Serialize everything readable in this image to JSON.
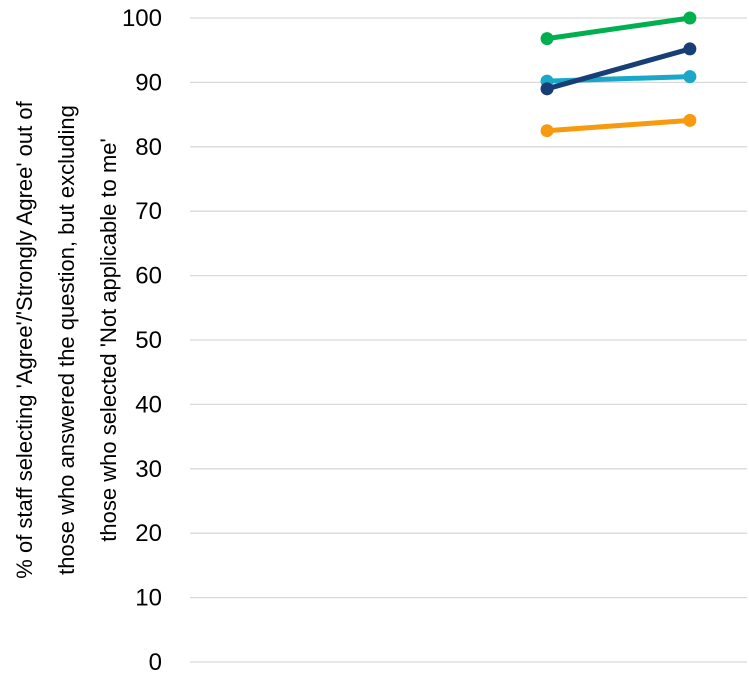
{
  "chart_data": {
    "type": "line",
    "title": "",
    "xlabel": "",
    "ylabel": [
      "% of staff selecting 'Agree'/'Strongly Agree' out of",
      "those who answered the question, but excluding",
      "those who selected 'Not applicable to me'"
    ],
    "ylim": [
      0,
      100
    ],
    "yticks": [
      0,
      10,
      20,
      30,
      40,
      50,
      60,
      70,
      80,
      90,
      100
    ],
    "grid": true,
    "legend": "none",
    "x": [
      1,
      2
    ],
    "xlim": [
      -1.5,
      2.4
    ],
    "series": [
      {
        "color": "#00B050",
        "values": [
          96.8,
          100.0
        ]
      },
      {
        "color": "#1AA8C8",
        "values": [
          90.2,
          90.9
        ]
      },
      {
        "color": "#173E75",
        "values": [
          89.0,
          95.2
        ]
      },
      {
        "color": "#F79A0F",
        "values": [
          82.5,
          84.1
        ]
      }
    ]
  }
}
